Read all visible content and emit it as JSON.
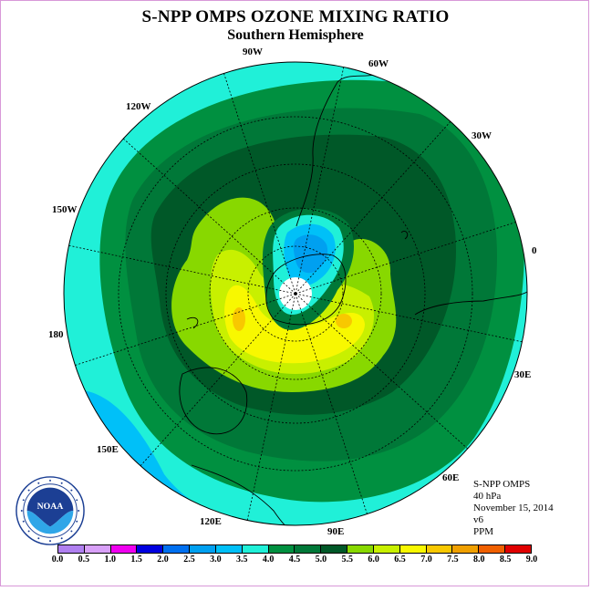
{
  "title": "S-NPP OMPS OZONE MIXING RATIO",
  "subtitle": "Southern Hemisphere",
  "info": {
    "instrument": "S-NPP OMPS",
    "level": "40 hPa",
    "date": "November 15, 2014",
    "version": "v6",
    "units": "PPM"
  },
  "map": {
    "projection": "south polar stereographic",
    "center_marker": "south-pole",
    "longitude_labels": {
      "lon_90w": "90W",
      "lon_60w": "60W",
      "lon_30w": "30W",
      "lon_0": "0",
      "lon_30e": "30E",
      "lon_60e": "60E",
      "lon_90e": "90E",
      "lon_120e": "120E",
      "lon_150e": "150E",
      "lon_180": "180",
      "lon_150w": "150W",
      "lon_120w": "120W"
    },
    "field_levels_ppm": {
      "outer": 3.5,
      "ring_a": 4.0,
      "ring_b": 4.5,
      "ring_c": 5.0,
      "ring_d": 5.5,
      "ring_e": 6.0,
      "ring_f": 6.5,
      "peak": 7.0,
      "vortex_edge": 4.0,
      "vortex_a": 3.5,
      "vortex_b": 3.0,
      "vortex_c": 2.5,
      "polar_cap": "no data"
    }
  },
  "logo": {
    "name": "NOAA",
    "ring_text": "NATIONAL OCEANIC AND ATMOSPHERIC ADMINISTRATION · U.S. DEPARTMENT OF COMMERCE"
  },
  "colorbar": {
    "ticks": [
      "0.0",
      "0.5",
      "1.0",
      "1.5",
      "2.0",
      "2.5",
      "3.0",
      "3.5",
      "4.0",
      "4.5",
      "5.0",
      "5.5",
      "6.0",
      "6.5",
      "7.0",
      "7.5",
      "8.0",
      "8.5",
      "9.0"
    ],
    "colors": [
      "#b080f0",
      "#d8a0f8",
      "#f000f0",
      "#0000e0",
      "#0070f0",
      "#00a0f0",
      "#00c0f8",
      "#20f0d8",
      "#009040",
      "#007838",
      "#005828",
      "#88d800",
      "#c8f000",
      "#f8f800",
      "#f8c800",
      "#f0a000",
      "#f06000",
      "#e00000",
      "#805030"
    ]
  }
}
